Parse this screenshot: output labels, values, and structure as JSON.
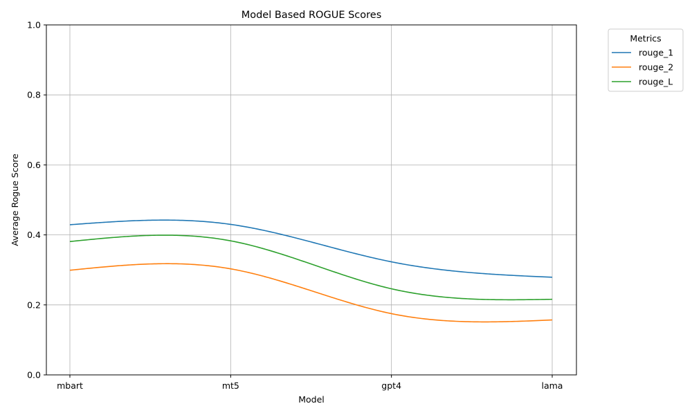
{
  "chart_data": {
    "type": "line",
    "title": "Model Based ROGUE Scores",
    "xlabel": "Model",
    "ylabel": "Average Rogue Score",
    "categories": [
      "mbart",
      "mt5",
      "gpt4",
      "lama"
    ],
    "ylim": [
      0,
      1
    ],
    "yticks": [
      "0.0",
      "0.2",
      "0.4",
      "0.6",
      "0.8",
      "1.0"
    ],
    "grid": true,
    "smooth": true,
    "legend": {
      "title": "Metrics",
      "placement": "outside-top-right"
    },
    "series": [
      {
        "name": "rouge_1",
        "color": "#1f77b4",
        "values": [
          0.429,
          0.43,
          0.323,
          0.279
        ]
      },
      {
        "name": "rouge_2",
        "color": "#ff7f0e",
        "values": [
          0.299,
          0.303,
          0.175,
          0.157
        ]
      },
      {
        "name": "rouge_L",
        "color": "#2ca02c",
        "values": [
          0.381,
          0.383,
          0.246,
          0.216
        ]
      }
    ]
  }
}
